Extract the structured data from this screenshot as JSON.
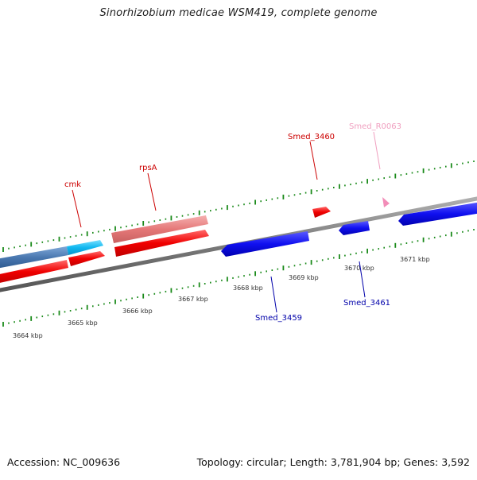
{
  "title": "Sinorhizobium medicae WSM419, complete genome",
  "footer": {
    "accession": "Accession: NC_009636",
    "summary": "Topology: circular; Length: 3,781,904 bp; Genes: 3,592"
  },
  "colors": {
    "forward_gene": "#ff1a1a",
    "forward_gene_light": "#e88080",
    "reverse_gene": "#1a1aff",
    "cds_blue": "#4f7fb5",
    "cds_cyan": "#1ab8f0",
    "rna": "#f28db8",
    "backbone": "#808080",
    "ticks": "#1a8a1a",
    "label_red": "#cc0000",
    "label_blue": "#0000aa",
    "label_pink": "#f0a0c0"
  },
  "ruler": {
    "unit": "kbp",
    "labels": [
      "3664 kbp",
      "3665 kbp",
      "3666 kbp",
      "3667 kbp",
      "3668 kbp",
      "3669 kbp",
      "3670 kbp",
      "3671 kbp"
    ]
  },
  "features": [
    {
      "name": "cmk",
      "strand": "+",
      "color": "label_red"
    },
    {
      "name": "rpsA",
      "strand": "+",
      "color": "label_red"
    },
    {
      "name": "Smed_3460",
      "strand": "+",
      "color": "label_red"
    },
    {
      "name": "Smed_R0063",
      "strand": "+",
      "color": "label_pink"
    },
    {
      "name": "Smed_3459",
      "strand": "-",
      "color": "label_blue"
    },
    {
      "name": "Smed_3461",
      "strand": "-",
      "color": "label_blue"
    }
  ]
}
